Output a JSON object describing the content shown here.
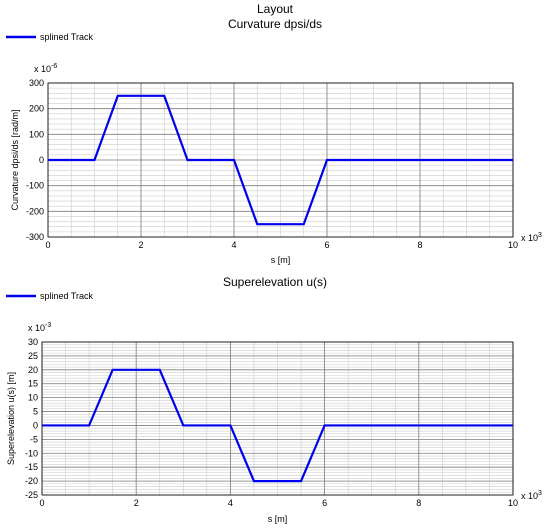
{
  "page_title": "Layout",
  "chart_data": [
    {
      "type": "line",
      "title": "Curvature dpsi/ds",
      "xlabel": "s [m]",
      "ylabel": "Curvature dpsi/ds [rad/m]",
      "x_exponent": "3",
      "y_exponent": "-6",
      "xlim": [
        0,
        10
      ],
      "ylim": [
        -300,
        300
      ],
      "xticks": [
        0,
        2,
        4,
        6,
        8,
        10
      ],
      "yticks": [
        300,
        200,
        100,
        0,
        -100,
        -200,
        -300
      ],
      "grid": true,
      "legend_position": "top-left",
      "series": [
        {
          "name": "splined Track",
          "color": "#0000ee",
          "x": [
            0,
            1,
            1.5,
            2.5,
            3,
            4,
            4.5,
            5.5,
            6,
            10
          ],
          "y": [
            0,
            0,
            250,
            250,
            0,
            0,
            -250,
            -250,
            0,
            0
          ]
        }
      ]
    },
    {
      "type": "line",
      "title": "Superelevation u(s)",
      "xlabel": "s [m]",
      "ylabel": "Superelevation u(s) [m]",
      "x_exponent": "3",
      "y_exponent": "-3",
      "xlim": [
        0,
        10
      ],
      "ylim": [
        -25,
        30
      ],
      "xticks": [
        0,
        2,
        4,
        6,
        8,
        10
      ],
      "yticks": [
        30,
        25,
        20,
        15,
        10,
        5,
        0,
        -5,
        -10,
        -15,
        -20,
        -25
      ],
      "grid": true,
      "legend_position": "top-left",
      "series": [
        {
          "name": "splined Track",
          "color": "#0000ee",
          "x": [
            0,
            1,
            1.5,
            2.5,
            3,
            4,
            4.5,
            5.5,
            6,
            10
          ],
          "y": [
            0,
            0,
            20,
            20,
            0,
            0,
            -20,
            -20,
            0,
            0
          ]
        }
      ]
    }
  ]
}
